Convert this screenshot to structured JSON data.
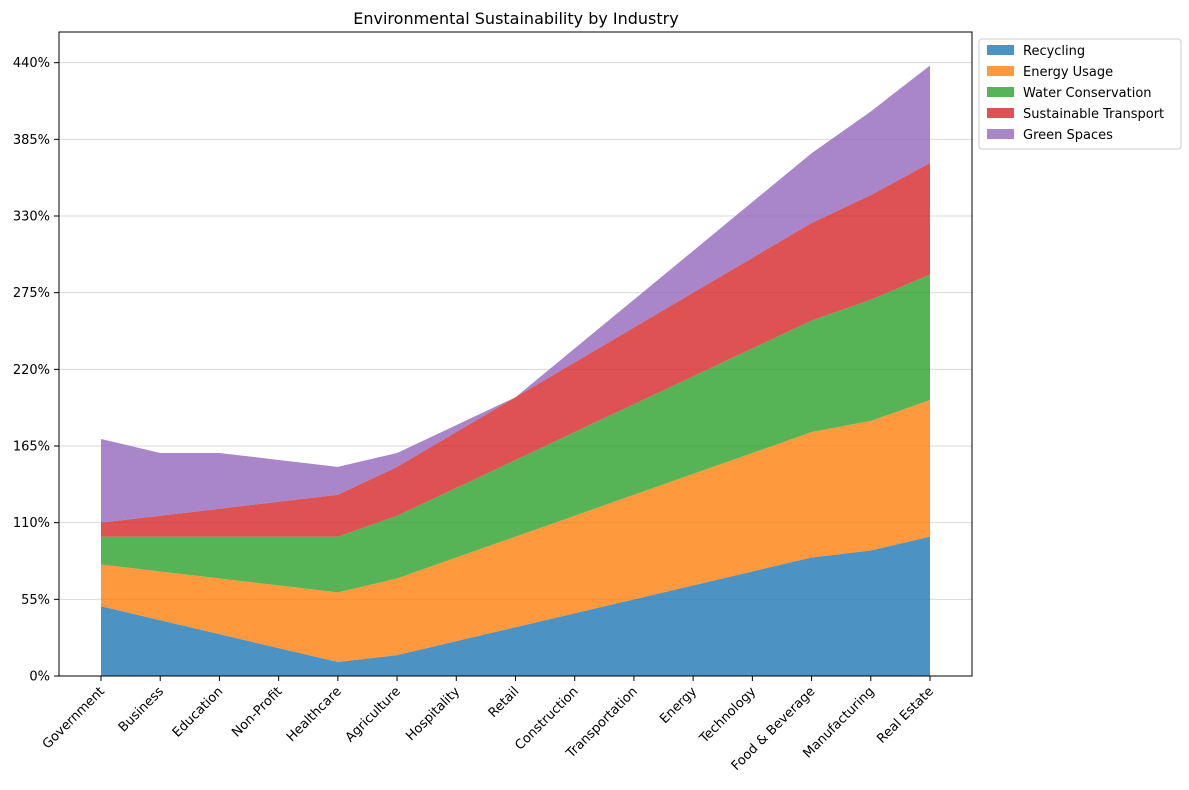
{
  "chart_data": {
    "type": "area",
    "stacked": true,
    "title": "Environmental Sustainability by Industry",
    "xlabel": "",
    "ylabel": "",
    "categories": [
      "Government",
      "Business",
      "Education",
      "Non-Profit",
      "Healthcare",
      "Agriculture",
      "Hospitality",
      "Retail",
      "Construction",
      "Transportation",
      "Energy",
      "Technology",
      "Food & Beverage",
      "Manufacturing",
      "Real Estate"
    ],
    "series": [
      {
        "name": "Recycling",
        "color": "#1f77b4",
        "values": [
          50,
          40,
          30,
          20,
          10,
          15,
          25,
          35,
          45,
          55,
          65,
          75,
          85,
          90,
          100
        ]
      },
      {
        "name": "Energy Usage",
        "color": "#ff7f0e",
        "values": [
          30,
          35,
          40,
          45,
          50,
          55,
          60,
          65,
          70,
          75,
          80,
          85,
          90,
          93,
          98
        ]
      },
      {
        "name": "Water Conservation",
        "color": "#2ca02c",
        "values": [
          20,
          25,
          30,
          35,
          40,
          45,
          50,
          55,
          60,
          65,
          70,
          75,
          80,
          87,
          90
        ]
      },
      {
        "name": "Sustainable Transport",
        "color": "#d62728",
        "values": [
          10,
          15,
          20,
          25,
          30,
          35,
          40,
          45,
          50,
          55,
          60,
          65,
          70,
          75,
          80
        ]
      },
      {
        "name": "Green Spaces",
        "color": "#9467bd",
        "values": [
          60,
          45,
          40,
          30,
          20,
          10,
          5,
          0,
          10,
          20,
          30,
          40,
          50,
          60,
          70
        ]
      }
    ],
    "yticks": [
      "0%",
      "55%",
      "110%",
      "165%",
      "220%",
      "275%",
      "330%",
      "385%",
      "440%"
    ],
    "ylim": [
      0,
      462
    ],
    "grid": "y",
    "legend_position": "outside-top-right"
  }
}
